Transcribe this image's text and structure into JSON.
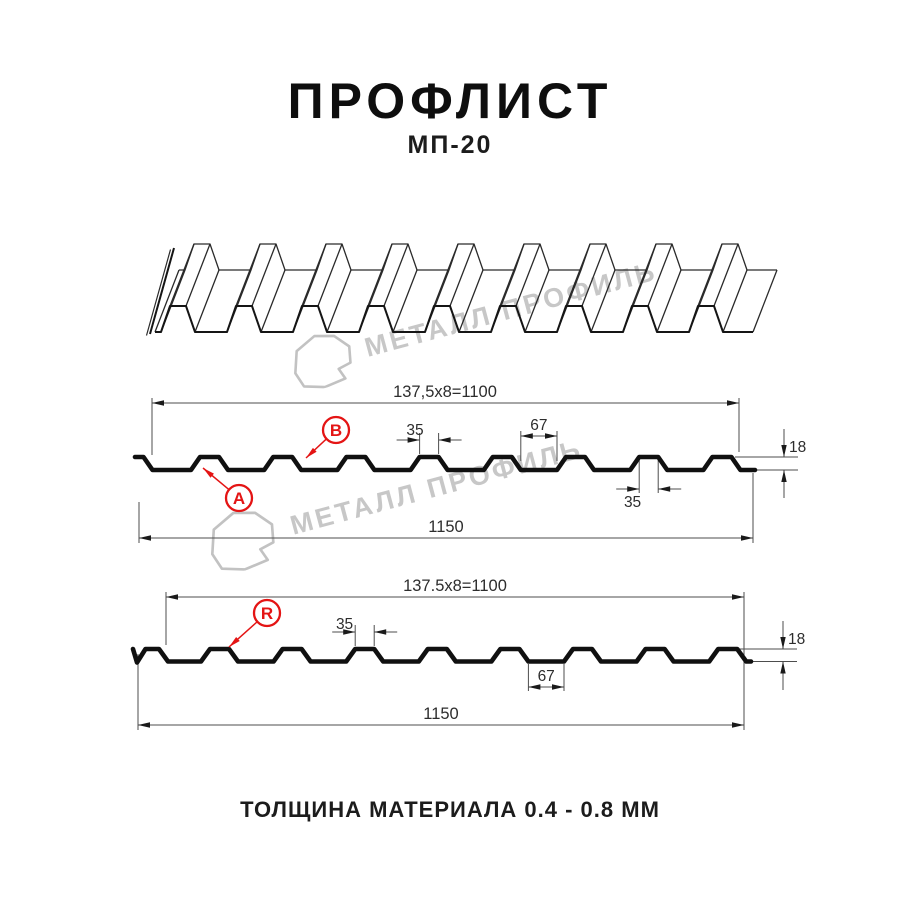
{
  "header": {
    "title": "ПРОФЛИСТ",
    "subtitle": "МП-20"
  },
  "footer": {
    "text": "ТОЛЩИНА МАТЕРИАЛА 0.4 - 0.8 ММ"
  },
  "watermark": {
    "text": "МЕТАЛЛ ПРОФИЛЬ",
    "color": "#c7c7c7",
    "logo_stroke": "#c2c2c2"
  },
  "colors": {
    "profile": "#101010",
    "dim_line": "#4d4d4d",
    "dim_text": "#2d2d2d",
    "arrow": "#1a1a1a",
    "red": "#e41414",
    "sketch_front": "#151515",
    "sketch_back": "#2a2a2a"
  },
  "diagram_top": {
    "pitch_label": "137,5x8=1100",
    "total_width_label": "1150",
    "crest_width_label": "35",
    "valley_width_label": "67",
    "height_label": "18",
    "crest_bottom_label": "35",
    "points": [
      {
        "letter": "A"
      },
      {
        "letter": "B"
      }
    ]
  },
  "diagram_bottom": {
    "pitch_label": "137.5x8=1100",
    "total_width_label": "1150",
    "crest_width_label": "35",
    "valley_width_label": "67",
    "height_label": "18",
    "points": [
      {
        "letter": "R"
      }
    ]
  }
}
